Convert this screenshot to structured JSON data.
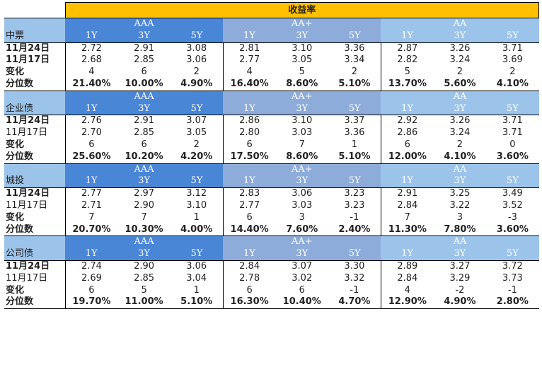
{
  "title": "收益率",
  "grades": [
    "AAA",
    "AA+",
    "AA"
  ],
  "tenors": [
    "1Y",
    "3Y",
    "5Y"
  ],
  "sections": [
    {
      "name": "中票",
      "rows": [
        {
          "label": "11月24日",
          "bold": true,
          "values": [
            "2.72",
            "2.91",
            "3.08",
            "2.81",
            "3.10",
            "3.36",
            "2.87",
            "3.26",
            "3.71"
          ]
        },
        {
          "label": "11月17日",
          "bold": true,
          "values": [
            "2.68",
            "2.85",
            "3.06",
            "2.77",
            "3.05",
            "3.34",
            "2.82",
            "3.24",
            "3.69"
          ]
        },
        {
          "label": "变化",
          "bold": true,
          "values": [
            "4",
            "6",
            "2",
            "4",
            "5",
            "2",
            "5",
            "2",
            "2"
          ]
        },
        {
          "label": "分位数",
          "bold": true,
          "pct": true,
          "values": [
            "21.40%",
            "10.00%",
            "4.90%",
            "16.40%",
            "8.60%",
            "5.10%",
            "13.70%",
            "5.60%",
            "4.10%"
          ]
        }
      ]
    },
    {
      "name": "企业债",
      "rows": [
        {
          "label": "11月24日",
          "bold": true,
          "values": [
            "2.76",
            "2.91",
            "3.07",
            "2.86",
            "3.10",
            "3.37",
            "2.92",
            "3.26",
            "3.71"
          ]
        },
        {
          "label": "11月17日",
          "bold": false,
          "values": [
            "2.70",
            "2.85",
            "3.05",
            "2.80",
            "3.03",
            "3.36",
            "2.86",
            "3.24",
            "3.71"
          ]
        },
        {
          "label": "变化",
          "bold": true,
          "values": [
            "6",
            "6",
            "2",
            "6",
            "7",
            "1",
            "6",
            "2",
            "0"
          ]
        },
        {
          "label": "分位数",
          "bold": true,
          "pct": true,
          "values": [
            "25.60%",
            "10.20%",
            "4.20%",
            "17.50%",
            "8.60%",
            "5.10%",
            "12.00%",
            "4.10%",
            "3.60%"
          ]
        }
      ]
    },
    {
      "name": "城投",
      "rows": [
        {
          "label": "11月24日",
          "bold": true,
          "values": [
            "2.77",
            "2.97",
            "3.12",
            "2.83",
            "3.06",
            "3.23",
            "2.91",
            "3.25",
            "3.49"
          ]
        },
        {
          "label": "11月17日",
          "bold": false,
          "values": [
            "2.71",
            "2.90",
            "3.10",
            "2.77",
            "3.03",
            "3.23",
            "2.84",
            "3.22",
            "3.52"
          ]
        },
        {
          "label": "变化",
          "bold": true,
          "values": [
            "7",
            "7",
            "1",
            "6",
            "3",
            "-1",
            "7",
            "3",
            "-3"
          ]
        },
        {
          "label": "分位数",
          "bold": true,
          "pct": true,
          "values": [
            "20.70%",
            "10.30%",
            "4.00%",
            "14.40%",
            "7.60%",
            "2.40%",
            "11.30%",
            "7.80%",
            "3.60%"
          ]
        }
      ]
    },
    {
      "name": "公司债",
      "rows": [
        {
          "label": "11月24日",
          "bold": true,
          "values": [
            "2.74",
            "2.90",
            "3.06",
            "2.84",
            "3.07",
            "3.30",
            "2.89",
            "3.27",
            "3.72"
          ]
        },
        {
          "label": "11月17日",
          "bold": false,
          "values": [
            "2.69",
            "2.85",
            "3.04",
            "2.78",
            "3.02",
            "3.32",
            "2.84",
            "3.29",
            "3.73"
          ]
        },
        {
          "label": "变化",
          "bold": true,
          "values": [
            "6",
            "5",
            "1",
            "6",
            "6",
            "-1",
            "4",
            "-2",
            "-1"
          ]
        },
        {
          "label": "分位数",
          "bold": true,
          "pct": true,
          "values": [
            "19.70%",
            "11.00%",
            "5.10%",
            "16.30%",
            "10.40%",
            "4.70%",
            "12.90%",
            "4.90%",
            "2.80%"
          ]
        }
      ]
    }
  ]
}
